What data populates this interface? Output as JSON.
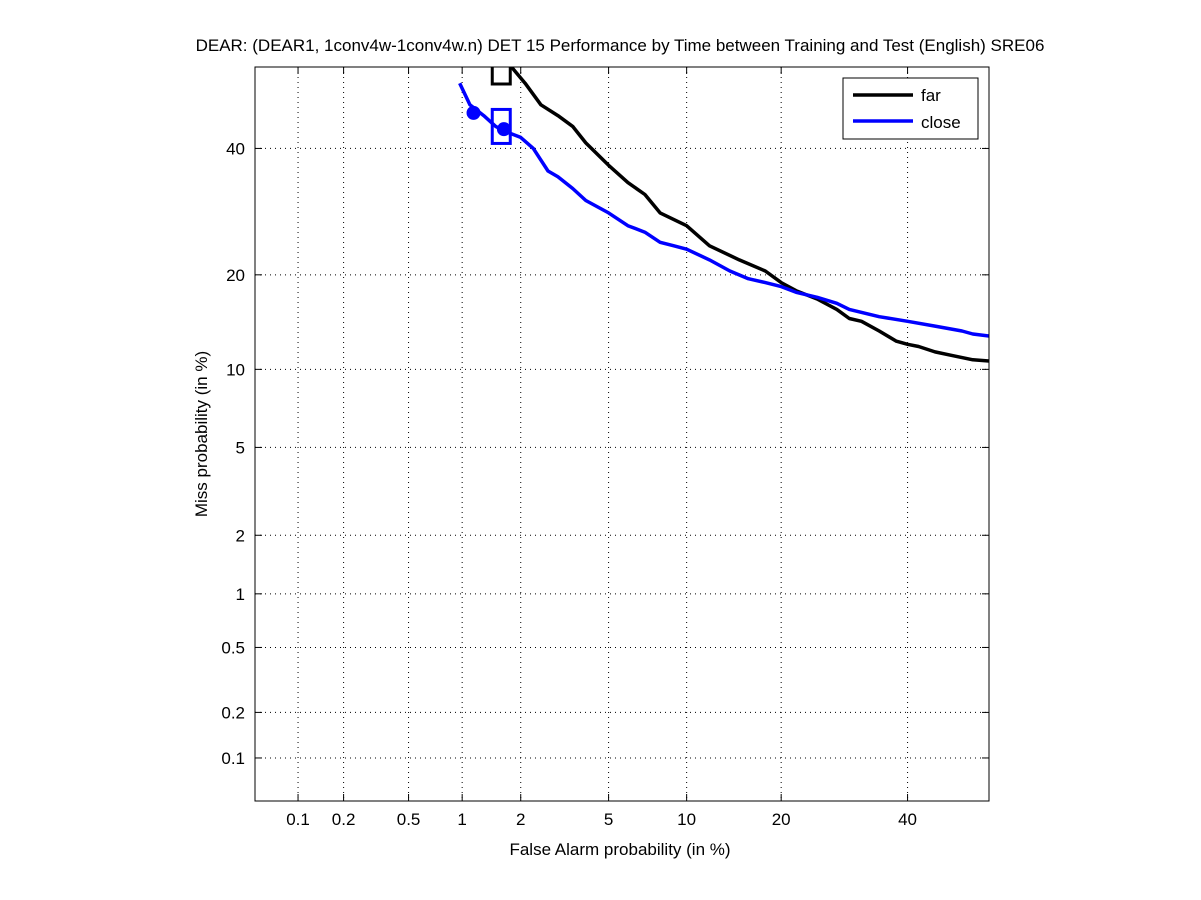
{
  "chart_data": {
    "type": "line",
    "title": "DEAR: (DEAR1, 1conv4w-1conv4w.n) DET 15 Performance by Time between Training and Test (English) SRE06",
    "xlabel": "False Alarm probability (in %)",
    "ylabel": "Miss probability (in %)",
    "xscale": "normal-deviate (probit)",
    "yscale": "normal-deviate (probit)",
    "xlim": [
      0.05,
      55
    ],
    "ylim": [
      0.05,
      55
    ],
    "x_ticks": [
      0.1,
      0.2,
      0.5,
      1,
      2,
      5,
      10,
      20,
      40
    ],
    "x_tick_labels": [
      "0.1",
      "0.2",
      "0.5",
      "1",
      "2",
      "5",
      "10",
      "20",
      "40"
    ],
    "y_ticks": [
      0.1,
      0.2,
      0.5,
      1,
      2,
      5,
      10,
      20,
      40
    ],
    "y_tick_labels": [
      "0.1",
      "0.2",
      "0.5",
      "1",
      "2",
      "5",
      "10",
      "20",
      "40"
    ],
    "grid": true,
    "legend_position": "top-right",
    "series": [
      {
        "name": "far",
        "color": "#000000",
        "x": [
          1.8,
          2.1,
          2.5,
          3.0,
          3.5,
          4.0,
          5.0,
          6.0,
          7.0,
          8.0,
          10.0,
          12.0,
          15.0,
          18.0,
          20.0,
          22.0,
          25.0,
          28.0,
          30.0,
          32.0,
          35.0,
          38.0,
          40.0,
          42.0,
          45.0,
          48.0,
          52.0,
          55.0
        ],
        "y": [
          55.0,
          52.0,
          48.0,
          46.0,
          44.0,
          41.0,
          37.0,
          34.0,
          32.0,
          29.0,
          27.0,
          24.0,
          22.0,
          20.5,
          19.0,
          18.0,
          17.0,
          15.8,
          14.8,
          14.5,
          13.5,
          12.5,
          12.2,
          12.0,
          11.5,
          11.2,
          10.8,
          10.7
        ]
      },
      {
        "name": "close",
        "color": "#0000ff",
        "x": [
          0.97,
          1.1,
          1.3,
          1.5,
          1.7,
          2.0,
          2.3,
          2.7,
          3.0,
          3.5,
          4.0,
          5.0,
          6.0,
          7.0,
          8.0,
          9.0,
          10.0,
          12.0,
          14.0,
          16.0,
          18.0,
          20.0,
          22.0,
          25.0,
          28.0,
          30.0,
          35.0,
          40.0,
          45.0,
          50.0,
          52.0,
          55.0
        ],
        "y": [
          52.0,
          48.0,
          46.0,
          44.0,
          43.0,
          42.0,
          40.0,
          36.0,
          35.0,
          33.0,
          31.0,
          29.0,
          27.0,
          26.0,
          24.5,
          24.0,
          23.5,
          22.0,
          20.5,
          19.5,
          19.0,
          18.5,
          17.8,
          17.2,
          16.5,
          15.8,
          15.0,
          14.5,
          14.0,
          13.5,
          13.2,
          13.0
        ]
      }
    ],
    "markers": [
      {
        "series": "close",
        "shape": "circle",
        "x": 1.15,
        "y": 46.5
      },
      {
        "series": "close",
        "shape": "circle",
        "x": 1.65,
        "y": 43.5
      },
      {
        "series": "close",
        "shape": "box",
        "x": 1.6,
        "y": 44.0
      },
      {
        "series": "far",
        "shape": "box",
        "x": 1.6,
        "y": 55.0
      }
    ]
  }
}
